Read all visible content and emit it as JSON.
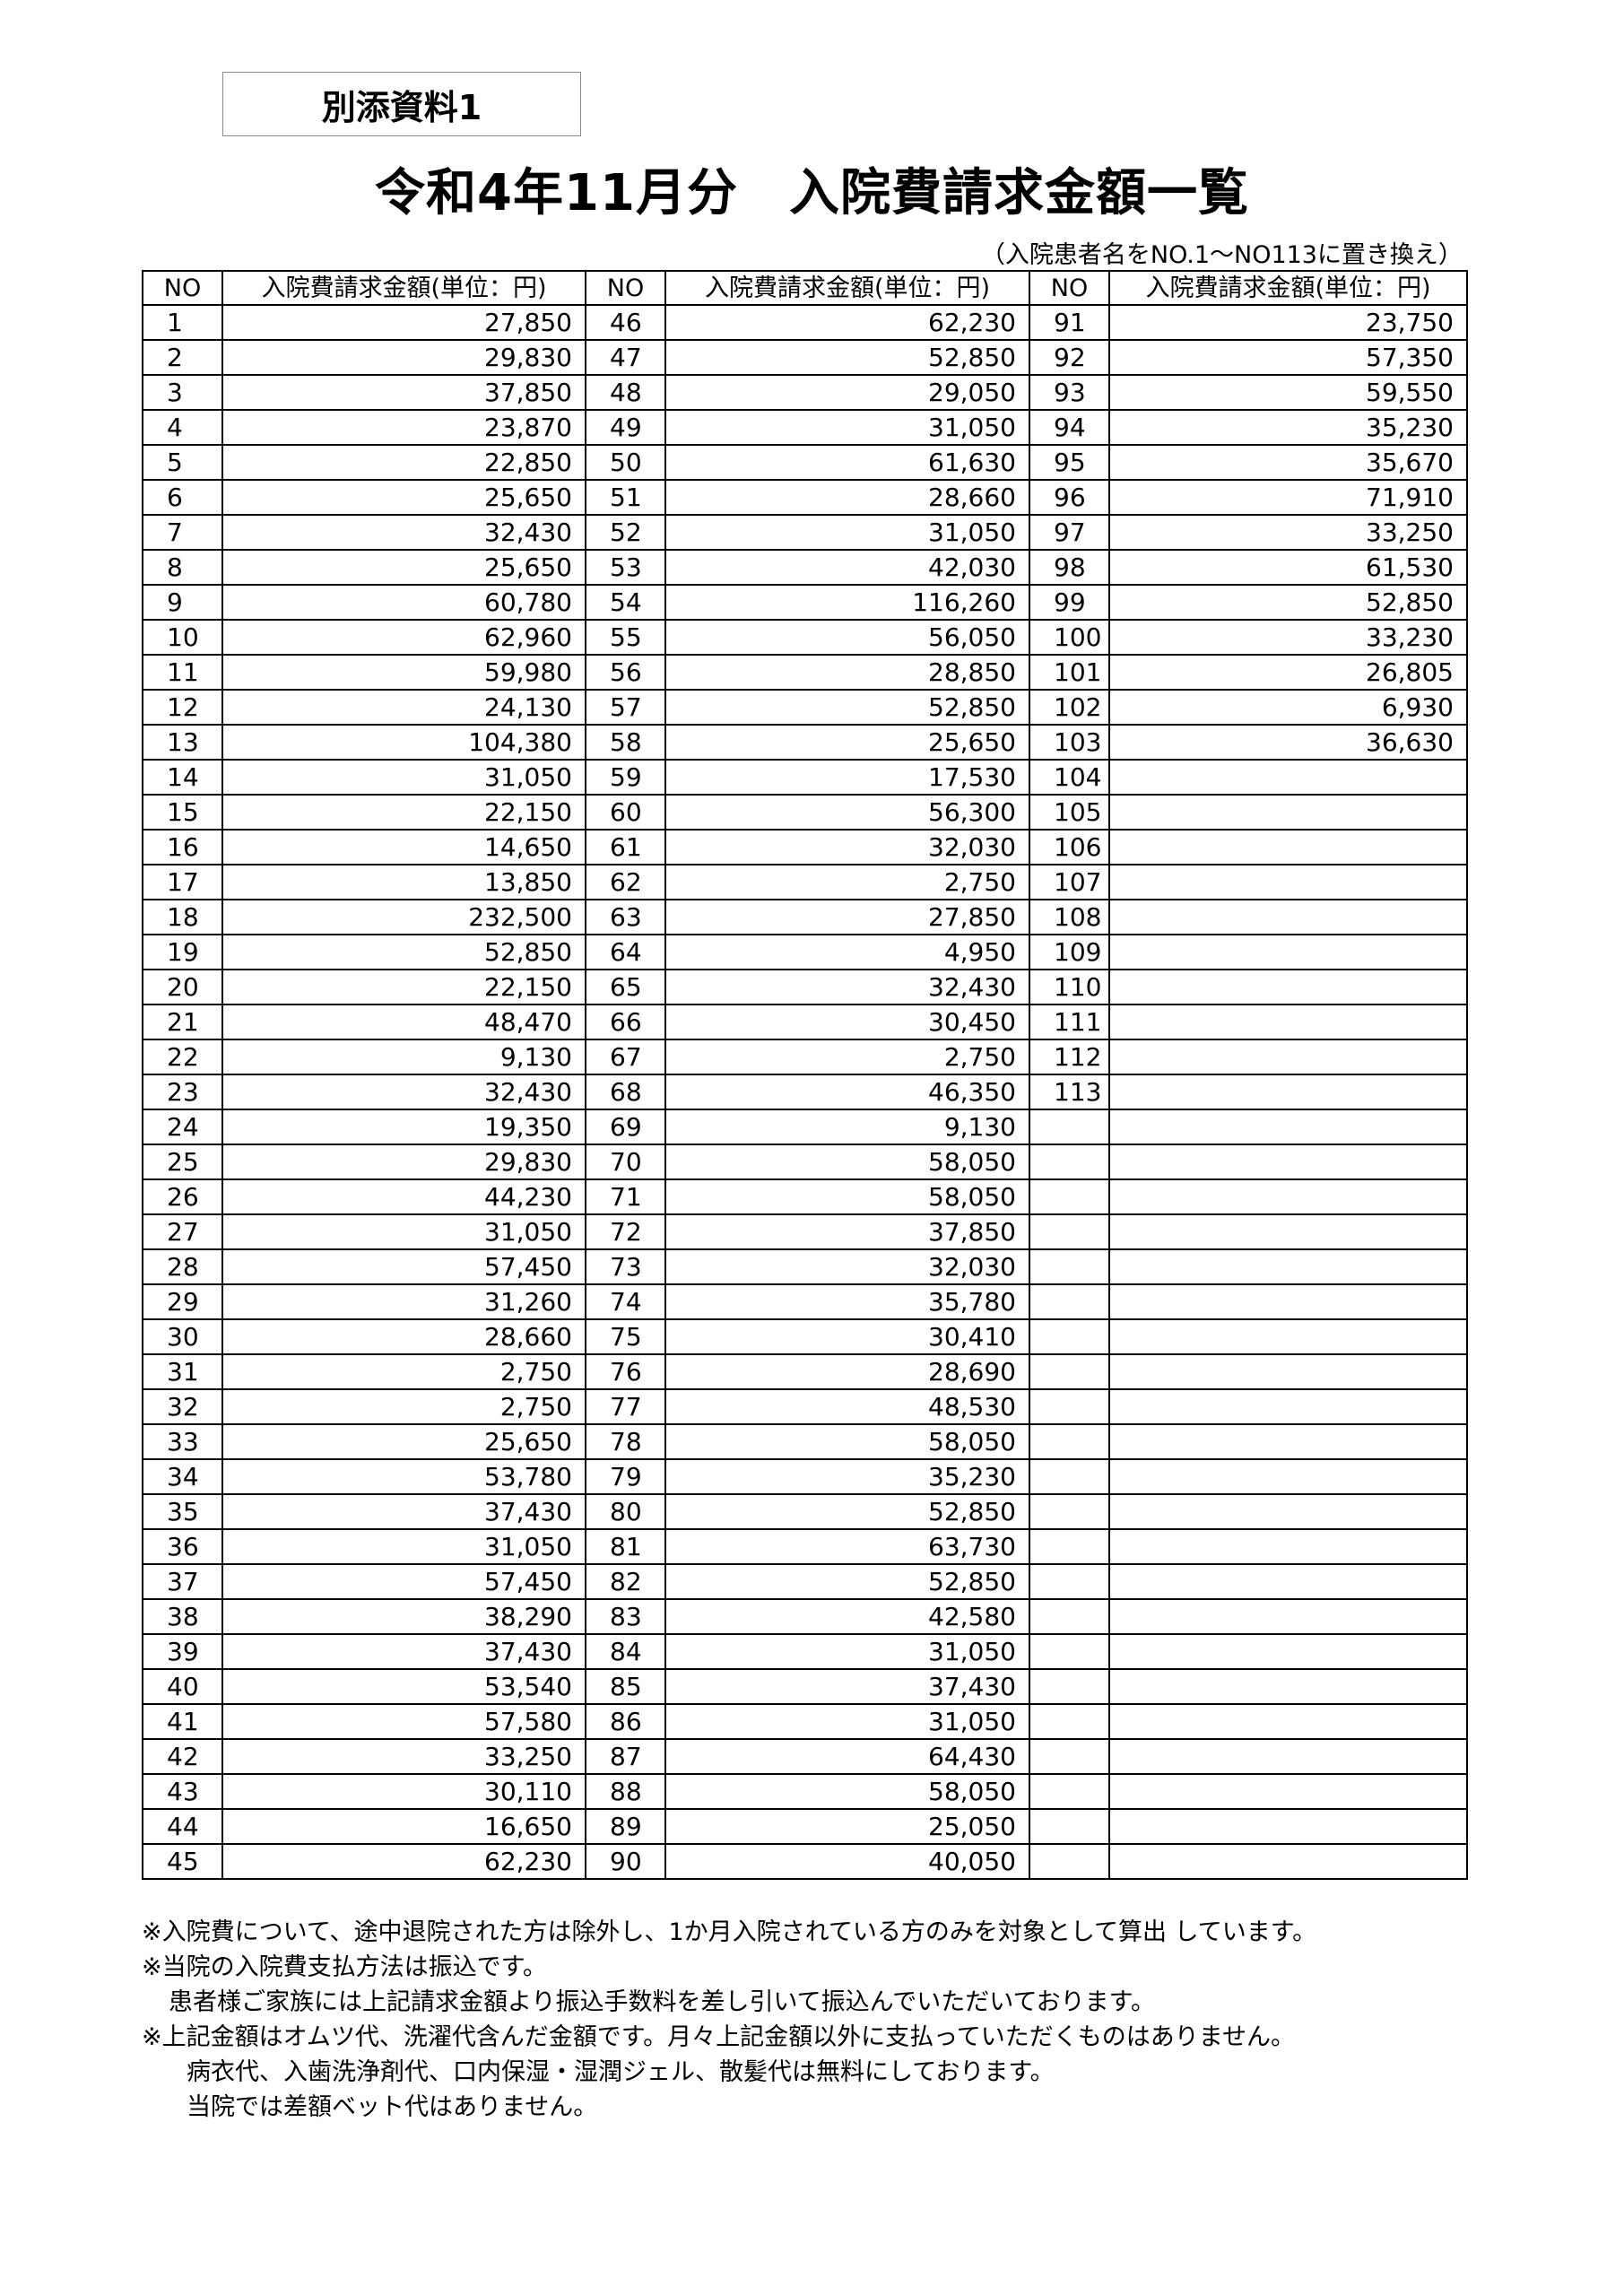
{
  "label": "別添資料1",
  "title": "令和4年11月分　入院費請求金額一覧",
  "subtitle": "（入院患者名をNO.1～NO113に置き換え）",
  "table": {
    "headers": [
      "NO",
      "入院費請求金額(単位：円)",
      "NO",
      "入院費請求金額(単位：円)",
      "NO",
      "入院費請求金額(単位：円)"
    ],
    "rows": [
      {
        "no": 1,
        "amount": "27,850"
      },
      {
        "no": 2,
        "amount": "29,830"
      },
      {
        "no": 3,
        "amount": "37,850"
      },
      {
        "no": 4,
        "amount": "23,870"
      },
      {
        "no": 5,
        "amount": "22,850"
      },
      {
        "no": 6,
        "amount": "25,650"
      },
      {
        "no": 7,
        "amount": "32,430"
      },
      {
        "no": 8,
        "amount": "25,650"
      },
      {
        "no": 9,
        "amount": "60,780"
      },
      {
        "no": 10,
        "amount": "62,960"
      },
      {
        "no": 11,
        "amount": "59,980"
      },
      {
        "no": 12,
        "amount": "24,130"
      },
      {
        "no": 13,
        "amount": "104,380"
      },
      {
        "no": 14,
        "amount": "31,050"
      },
      {
        "no": 15,
        "amount": "22,150"
      },
      {
        "no": 16,
        "amount": "14,650"
      },
      {
        "no": 17,
        "amount": "13,850"
      },
      {
        "no": 18,
        "amount": "232,500"
      },
      {
        "no": 19,
        "amount": "52,850"
      },
      {
        "no": 20,
        "amount": "22,150"
      },
      {
        "no": 21,
        "amount": "48,470"
      },
      {
        "no": 22,
        "amount": "9,130"
      },
      {
        "no": 23,
        "amount": "32,430"
      },
      {
        "no": 24,
        "amount": "19,350"
      },
      {
        "no": 25,
        "amount": "29,830"
      },
      {
        "no": 26,
        "amount": "44,230"
      },
      {
        "no": 27,
        "amount": "31,050"
      },
      {
        "no": 28,
        "amount": "57,450"
      },
      {
        "no": 29,
        "amount": "31,260"
      },
      {
        "no": 30,
        "amount": "28,660"
      },
      {
        "no": 31,
        "amount": "2,750"
      },
      {
        "no": 32,
        "amount": "2,750"
      },
      {
        "no": 33,
        "amount": "25,650"
      },
      {
        "no": 34,
        "amount": "53,780"
      },
      {
        "no": 35,
        "amount": "37,430"
      },
      {
        "no": 36,
        "amount": "31,050"
      },
      {
        "no": 37,
        "amount": "57,450"
      },
      {
        "no": 38,
        "amount": "38,290"
      },
      {
        "no": 39,
        "amount": "37,430"
      },
      {
        "no": 40,
        "amount": "53,540"
      },
      {
        "no": 41,
        "amount": "57,580"
      },
      {
        "no": 42,
        "amount": "33,250"
      },
      {
        "no": 43,
        "amount": "30,110"
      },
      {
        "no": 44,
        "amount": "16,650"
      },
      {
        "no": 45,
        "amount": "62,230"
      },
      {
        "no": 46,
        "amount": "62,230"
      },
      {
        "no": 47,
        "amount": "52,850"
      },
      {
        "no": 48,
        "amount": "29,050"
      },
      {
        "no": 49,
        "amount": "31,050"
      },
      {
        "no": 50,
        "amount": "61,630"
      },
      {
        "no": 51,
        "amount": "28,660"
      },
      {
        "no": 52,
        "amount": "31,050"
      },
      {
        "no": 53,
        "amount": "42,030"
      },
      {
        "no": 54,
        "amount": "116,260"
      },
      {
        "no": 55,
        "amount": "56,050"
      },
      {
        "no": 56,
        "amount": "28,850"
      },
      {
        "no": 57,
        "amount": "52,850"
      },
      {
        "no": 58,
        "amount": "25,650"
      },
      {
        "no": 59,
        "amount": "17,530"
      },
      {
        "no": 60,
        "amount": "56,300"
      },
      {
        "no": 61,
        "amount": "32,030"
      },
      {
        "no": 62,
        "amount": "2,750"
      },
      {
        "no": 63,
        "amount": "27,850"
      },
      {
        "no": 64,
        "amount": "4,950"
      },
      {
        "no": 65,
        "amount": "32,430"
      },
      {
        "no": 66,
        "amount": "30,450"
      },
      {
        "no": 67,
        "amount": "2,750"
      },
      {
        "no": 68,
        "amount": "46,350"
      },
      {
        "no": 69,
        "amount": "9,130"
      },
      {
        "no": 70,
        "amount": "58,050"
      },
      {
        "no": 71,
        "amount": "58,050"
      },
      {
        "no": 72,
        "amount": "37,850"
      },
      {
        "no": 73,
        "amount": "32,030"
      },
      {
        "no": 74,
        "amount": "35,780"
      },
      {
        "no": 75,
        "amount": "30,410"
      },
      {
        "no": 76,
        "amount": "28,690"
      },
      {
        "no": 77,
        "amount": "48,530"
      },
      {
        "no": 78,
        "amount": "58,050"
      },
      {
        "no": 79,
        "amount": "35,230"
      },
      {
        "no": 80,
        "amount": "52,850"
      },
      {
        "no": 81,
        "amount": "63,730"
      },
      {
        "no": 82,
        "amount": "52,850"
      },
      {
        "no": 83,
        "amount": "42,580"
      },
      {
        "no": 84,
        "amount": "31,050"
      },
      {
        "no": 85,
        "amount": "37,430"
      },
      {
        "no": 86,
        "amount": "31,050"
      },
      {
        "no": 87,
        "amount": "64,430"
      },
      {
        "no": 88,
        "amount": "58,050"
      },
      {
        "no": 89,
        "amount": "25,050"
      },
      {
        "no": 90,
        "amount": "40,050"
      },
      {
        "no": 91,
        "amount": "23,750"
      },
      {
        "no": 92,
        "amount": "57,350"
      },
      {
        "no": 93,
        "amount": "59,550"
      },
      {
        "no": 94,
        "amount": "35,230"
      },
      {
        "no": 95,
        "amount": "35,670"
      },
      {
        "no": 96,
        "amount": "71,910"
      },
      {
        "no": 97,
        "amount": "33,250"
      },
      {
        "no": 98,
        "amount": "61,530"
      },
      {
        "no": 99,
        "amount": "52,850"
      },
      {
        "no": 100,
        "amount": "33,230"
      },
      {
        "no": 101,
        "amount": "26,805"
      },
      {
        "no": 102,
        "amount": "6,930"
      },
      {
        "no": 103,
        "amount": "36,630"
      },
      {
        "no": 104,
        "amount": ""
      },
      {
        "no": 105,
        "amount": ""
      },
      {
        "no": 106,
        "amount": ""
      },
      {
        "no": 107,
        "amount": ""
      },
      {
        "no": 108,
        "amount": ""
      },
      {
        "no": 109,
        "amount": ""
      },
      {
        "no": 110,
        "amount": ""
      },
      {
        "no": 111,
        "amount": ""
      },
      {
        "no": 112,
        "amount": ""
      },
      {
        "no": 113,
        "amount": ""
      }
    ]
  },
  "notes": [
    "※入院費について、途中退院された方は除外し、1か月入院されている方のみを対象として算出 しています。",
    "※当院の入院費支払方法は振込です。",
    "患者様ご家族には上記請求金額より振込手数料を差し引いて振込んでいただいております。",
    "※上記金額はオムツ代、洗濯代含んだ金額です。月々上記金額以外に支払っていただくものはありません。",
    "病衣代、入歯洗浄剤代、口内保湿・湿潤ジェル、散髪代は無料にしております。",
    "当院では差額ベット代はありません。"
  ]
}
